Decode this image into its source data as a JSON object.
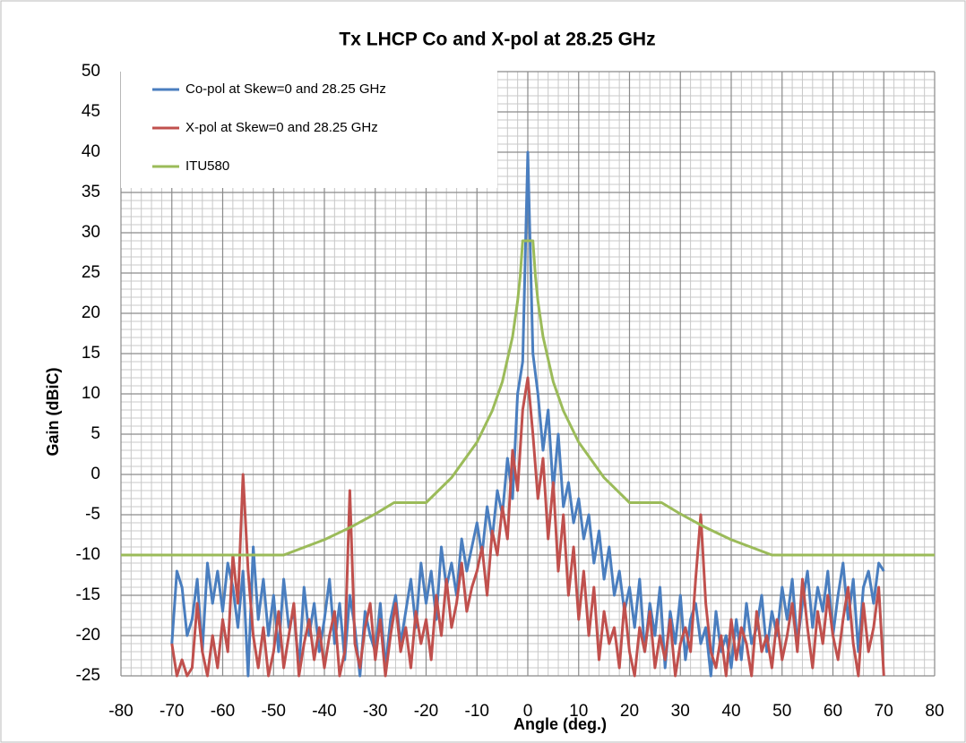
{
  "chart_data": {
    "type": "line",
    "title": "Tx LHCP Co and X-pol at 28.25 GHz",
    "xlabel": "Angle (deg.)",
    "ylabel": "Gain (dBiC)",
    "xlim": [
      -80,
      80
    ],
    "ylim": [
      -25,
      50
    ],
    "xticks": [
      -80,
      -70,
      -60,
      -50,
      -40,
      -30,
      -20,
      -10,
      0,
      10,
      20,
      30,
      40,
      50,
      60,
      70,
      80
    ],
    "yticks": [
      -25,
      -20,
      -15,
      -10,
      -5,
      0,
      5,
      10,
      15,
      20,
      25,
      30,
      35,
      40,
      45,
      50
    ],
    "grid": true,
    "minor_grid_divisions": {
      "x": 5,
      "y": 5
    },
    "legend": "upper left",
    "series": [
      {
        "name": "Co-pol at Skew=0 and 28.25 GHz",
        "color": "#4a7ebf",
        "x": [
          -70,
          -69,
          -68,
          -67,
          -66,
          -65,
          -64,
          -63,
          -62,
          -61,
          -60,
          -59,
          -58,
          -57,
          -56,
          -55,
          -54,
          -53,
          -52,
          -51,
          -50,
          -49,
          -48,
          -47,
          -46,
          -45,
          -44,
          -43,
          -42,
          -41,
          -40,
          -39,
          -38,
          -37,
          -36,
          -35,
          -34,
          -33,
          -32,
          -31,
          -30,
          -29,
          -28,
          -27,
          -26,
          -25,
          -24,
          -23,
          -22,
          -21,
          -20,
          -19,
          -18,
          -17,
          -16,
          -15,
          -14,
          -13,
          -12,
          -11,
          -10,
          -9,
          -8,
          -7,
          -6,
          -5,
          -4,
          -3,
          -2,
          -1,
          0,
          1,
          2,
          3,
          4,
          5,
          6,
          7,
          8,
          9,
          10,
          11,
          12,
          13,
          14,
          15,
          16,
          17,
          18,
          19,
          20,
          21,
          22,
          23,
          24,
          25,
          26,
          27,
          28,
          29,
          30,
          31,
          32,
          33,
          34,
          35,
          36,
          37,
          38,
          39,
          40,
          41,
          42,
          43,
          44,
          45,
          46,
          47,
          48,
          49,
          50,
          51,
          52,
          53,
          54,
          55,
          56,
          57,
          58,
          59,
          60,
          61,
          62,
          63,
          64,
          65,
          66,
          67,
          68,
          69,
          70
        ],
        "values": [
          -21,
          -12,
          -14,
          -20,
          -18,
          -13,
          -22,
          -11,
          -16,
          -12,
          -17,
          -11,
          -14,
          -19,
          -12,
          -25,
          -9,
          -18,
          -13,
          -20,
          -15,
          -22,
          -13,
          -19,
          -17,
          -24,
          -14,
          -20,
          -16,
          -22,
          -18,
          -13,
          -21,
          -16,
          -23,
          -15,
          -19,
          -25,
          -17,
          -20,
          -22,
          -16,
          -24,
          -18,
          -15,
          -21,
          -17,
          -13,
          -19,
          -11,
          -16,
          -12,
          -18,
          -9,
          -14,
          -11,
          -15,
          -8,
          -12,
          -9,
          -6,
          -10,
          -4,
          -8,
          -2,
          -5,
          2,
          -3,
          10,
          14,
          40,
          15,
          10,
          3,
          8,
          -2,
          5,
          -4,
          -1,
          -6,
          -3,
          -8,
          -5,
          -11,
          -7,
          -13,
          -9,
          -15,
          -12,
          -17,
          -14,
          -19,
          -13,
          -22,
          -16,
          -20,
          -14,
          -24,
          -17,
          -21,
          -15,
          -23,
          -18,
          -16,
          -21,
          -19,
          -25,
          -17,
          -22,
          -20,
          -24,
          -18,
          -23,
          -16,
          -21,
          -19,
          -15,
          -22,
          -17,
          -20,
          -14,
          -18,
          -13,
          -21,
          -16,
          -12,
          -19,
          -14,
          -17,
          -12,
          -20,
          -15,
          -11,
          -18,
          -13,
          -22,
          -14,
          -12,
          -16,
          -11,
          -12
        ]
      },
      {
        "name": "X-pol at Skew=0 and 28.25 GHz",
        "color": "#c0504d",
        "x": [
          -70,
          -69,
          -68,
          -67,
          -66,
          -65,
          -64,
          -63,
          -62,
          -61,
          -60,
          -59,
          -58,
          -57,
          -56,
          -55,
          -54,
          -53,
          -52,
          -51,
          -50,
          -49,
          -48,
          -47,
          -46,
          -45,
          -44,
          -43,
          -42,
          -41,
          -40,
          -39,
          -38,
          -37,
          -36,
          -35,
          -34,
          -33,
          -32,
          -31,
          -30,
          -29,
          -28,
          -27,
          -26,
          -25,
          -24,
          -23,
          -22,
          -21,
          -20,
          -19,
          -18,
          -17,
          -16,
          -15,
          -14,
          -13,
          -12,
          -11,
          -10,
          -9,
          -8,
          -7,
          -6,
          -5,
          -4,
          -3,
          -2,
          -1,
          0,
          1,
          2,
          3,
          4,
          5,
          6,
          7,
          8,
          9,
          10,
          11,
          12,
          13,
          14,
          15,
          16,
          17,
          18,
          19,
          20,
          21,
          22,
          23,
          24,
          25,
          26,
          27,
          28,
          29,
          30,
          31,
          32,
          33,
          34,
          35,
          36,
          37,
          38,
          39,
          40,
          41,
          42,
          43,
          44,
          45,
          46,
          47,
          48,
          49,
          50,
          51,
          52,
          53,
          54,
          55,
          56,
          57,
          58,
          59,
          60,
          61,
          62,
          63,
          64,
          65,
          66,
          67,
          68,
          69,
          70
        ],
        "values": [
          -21,
          -25,
          -23,
          -25,
          -24,
          -16,
          -22,
          -25,
          -20,
          -24,
          -18,
          -22,
          -10,
          -16,
          0,
          -12,
          -20,
          -24,
          -19,
          -25,
          -22,
          -17,
          -24,
          -20,
          -16,
          -25,
          -21,
          -18,
          -23,
          -19,
          -24,
          -20,
          -17,
          -25,
          -22,
          -2,
          -21,
          -24,
          -19,
          -16,
          -23,
          -18,
          -25,
          -20,
          -16,
          -22,
          -19,
          -24,
          -17,
          -21,
          -18,
          -23,
          -15,
          -20,
          -13,
          -19,
          -16,
          -11,
          -17,
          -14,
          -12,
          -9,
          -15,
          -7,
          -10,
          -4,
          -8,
          3,
          -2,
          8,
          12,
          5,
          -3,
          2,
          -8,
          -1,
          -12,
          -5,
          -15,
          -9,
          -18,
          -12,
          -20,
          -14,
          -23,
          -17,
          -21,
          -19,
          -24,
          -16,
          -22,
          -25,
          -19,
          -22,
          -17,
          -24,
          -20,
          -23,
          -18,
          -25,
          -21,
          -19,
          -22,
          -13,
          -5,
          -16,
          -22,
          -24,
          -20,
          -25,
          -18,
          -23,
          -19,
          -21,
          -25,
          -17,
          -22,
          -20,
          -24,
          -18,
          -23,
          -20,
          -16,
          -22,
          -13,
          -19,
          -24,
          -17,
          -21,
          -15,
          -20,
          -23,
          -18,
          -14,
          -21,
          -25,
          -16,
          -22,
          -19,
          -14,
          -25
        ]
      },
      {
        "name": "ITU580",
        "color": "#9bbb59",
        "x": [
          -80,
          -48,
          -40,
          -35,
          -30,
          -26.3,
          -20,
          -15,
          -10,
          -7,
          -5,
          -3,
          -2,
          -1.5,
          -1,
          0,
          1,
          1.5,
          2,
          3,
          5,
          7,
          10,
          15,
          20,
          26.3,
          30,
          35,
          40,
          48,
          80
        ],
        "values": [
          -10,
          -10,
          -8.1,
          -6.6,
          -4.9,
          -3.5,
          -3.5,
          -0.4,
          4,
          7.9,
          11.5,
          17.1,
          21.5,
          24.6,
          29,
          29,
          29,
          24.6,
          21.5,
          17.1,
          11.5,
          7.9,
          4,
          -0.4,
          -3.5,
          -3.5,
          -4.9,
          -6.6,
          -8.1,
          -10,
          -10
        ]
      }
    ]
  }
}
